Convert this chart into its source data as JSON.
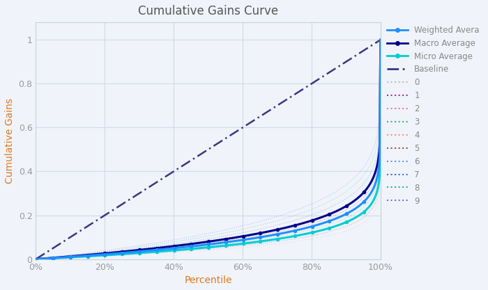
{
  "title": "Cumulative Gains Curve",
  "xlabel": "Percentile",
  "ylabel": "Cumulative Gains",
  "xtick_labels": [
    "0%",
    "20%",
    "40%",
    "60%",
    "80%",
    "100%"
  ],
  "xtick_positions": [
    0,
    0.2,
    0.4,
    0.6,
    0.8,
    1.0
  ],
  "ytick_labels": [
    "0",
    "0.2",
    "0.4",
    "0.6",
    "0.8",
    "1"
  ],
  "ytick_positions": [
    0,
    0.2,
    0.4,
    0.6,
    0.8,
    1.0
  ],
  "weighted_avg_color": "#1E90FF",
  "macro_avg_color": "#00008B",
  "micro_avg_color": "#00CED1",
  "baseline_color": "#3D3580",
  "class_colors": [
    "#C8B4D0",
    "#9B2D9B",
    "#FF69B4",
    "#3CB371",
    "#FF8C69",
    "#A0522D",
    "#6495ED",
    "#4169E1",
    "#20B2AA",
    "#7B68EE"
  ],
  "background_color": "#F0F4FA",
  "grid_color": "#D0D8E8",
  "title_color": "#555555",
  "axis_label_color": "#E07820",
  "tick_label_color": "#999999"
}
